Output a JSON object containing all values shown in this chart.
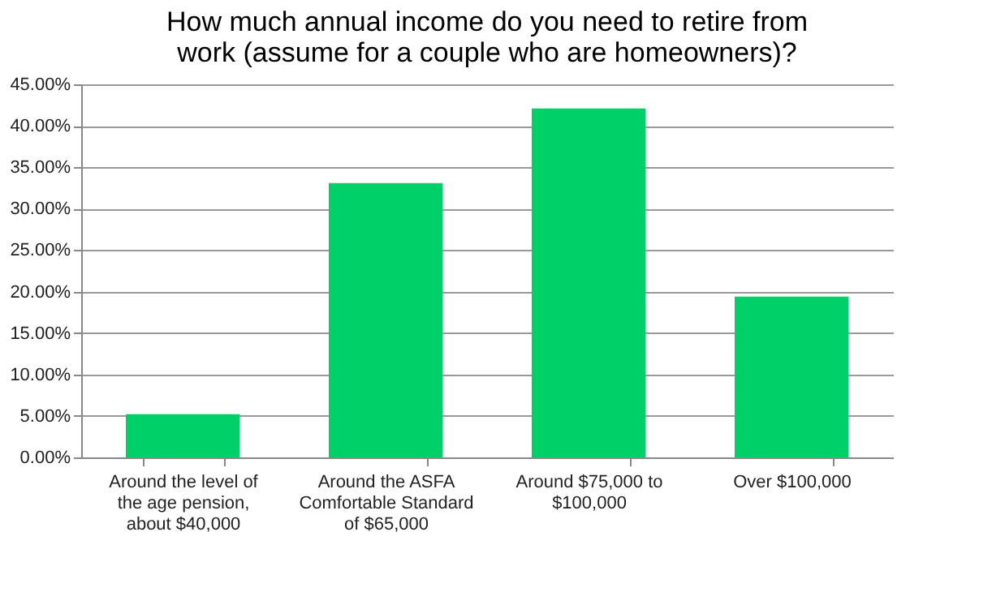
{
  "chart_data": {
    "type": "bar",
    "title": "How much annual income do you need to retire from work (assume for a couple who are homeowners)?",
    "categories": [
      "Around the level of the age pension, about $40,000",
      "Around the ASFA Comfortable Standard of $65,000",
      "Around $75,000 to $100,000",
      "Over $100,000"
    ],
    "values": [
      5.2,
      33.1,
      42.1,
      19.4
    ],
    "color": "#00d068",
    "ylim": [
      0,
      45
    ],
    "yticks": [
      {
        "value": 0,
        "label": "0.00%"
      },
      {
        "value": 5,
        "label": "5.00%"
      },
      {
        "value": 10,
        "label": "10.00%"
      },
      {
        "value": 15,
        "label": "15.00%"
      },
      {
        "value": 20,
        "label": "20.00%"
      },
      {
        "value": 25,
        "label": "25.00%"
      },
      {
        "value": 30,
        "label": "30.00%"
      },
      {
        "value": 35,
        "label": "35.00%"
      },
      {
        "value": 40,
        "label": "40.00%"
      },
      {
        "value": 45,
        "label": "45.00%"
      }
    ],
    "grid": "y"
  }
}
